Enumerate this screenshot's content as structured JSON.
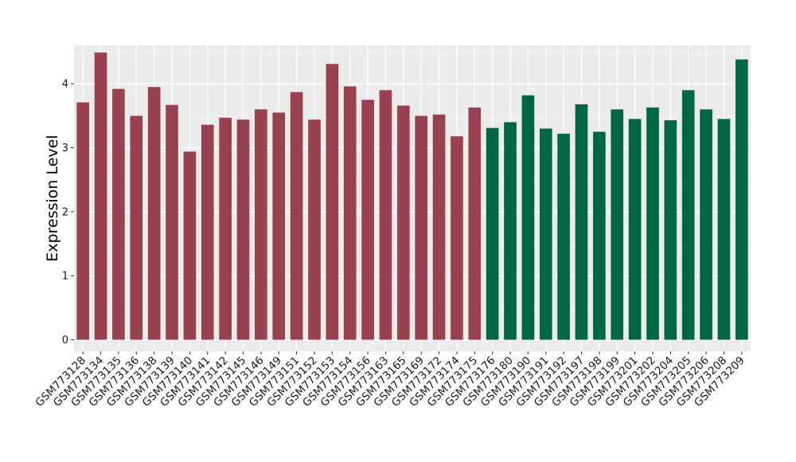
{
  "chart_data": {
    "type": "bar",
    "title": "",
    "xlabel": "",
    "ylabel": "Expression Level",
    "ylim": [
      -0.18,
      4.6
    ],
    "yticks": [
      0,
      1,
      2,
      3,
      4
    ],
    "grid": true,
    "legend": "none",
    "colors": {
      "group_a": "#98424f",
      "group_b": "#006743",
      "panel_bg": "#ebebeb",
      "grid_major": "#ffffff"
    },
    "categories": [
      "GSM773128",
      "GSM773134",
      "GSM773135",
      "GSM773136",
      "GSM773138",
      "GSM773139",
      "GSM773140",
      "GSM773141",
      "GSM773142",
      "GSM773145",
      "GSM773146",
      "GSM773149",
      "GSM773151",
      "GSM773152",
      "GSM773153",
      "GSM773154",
      "GSM773156",
      "GSM773163",
      "GSM773165",
      "GSM773169",
      "GSM773172",
      "GSM773174",
      "GSM773175",
      "GSM773176",
      "GSM773180",
      "GSM773190",
      "GSM773191",
      "GSM773192",
      "GSM773197",
      "GSM773198",
      "GSM773199",
      "GSM773201",
      "GSM773202",
      "GSM773204",
      "GSM773205",
      "GSM773206",
      "GSM773208",
      "GSM773209"
    ],
    "values": [
      3.71,
      4.49,
      3.92,
      3.5,
      3.95,
      3.67,
      2.94,
      3.36,
      3.47,
      3.44,
      3.6,
      3.55,
      3.87,
      3.44,
      4.31,
      3.96,
      3.75,
      3.9,
      3.66,
      3.5,
      3.52,
      3.18,
      3.63,
      3.31,
      3.4,
      3.82,
      3.3,
      3.22,
      3.68,
      3.25,
      3.6,
      3.45,
      3.63,
      3.43,
      3.9,
      3.6,
      3.45,
      4.38
    ],
    "groups": [
      "group_a",
      "group_a",
      "group_a",
      "group_a",
      "group_a",
      "group_a",
      "group_a",
      "group_a",
      "group_a",
      "group_a",
      "group_a",
      "group_a",
      "group_a",
      "group_a",
      "group_a",
      "group_a",
      "group_a",
      "group_a",
      "group_a",
      "group_a",
      "group_a",
      "group_a",
      "group_a",
      "group_b",
      "group_b",
      "group_b",
      "group_b",
      "group_b",
      "group_b",
      "group_b",
      "group_b",
      "group_b",
      "group_b",
      "group_b",
      "group_b",
      "group_b",
      "group_b",
      "group_b"
    ]
  }
}
